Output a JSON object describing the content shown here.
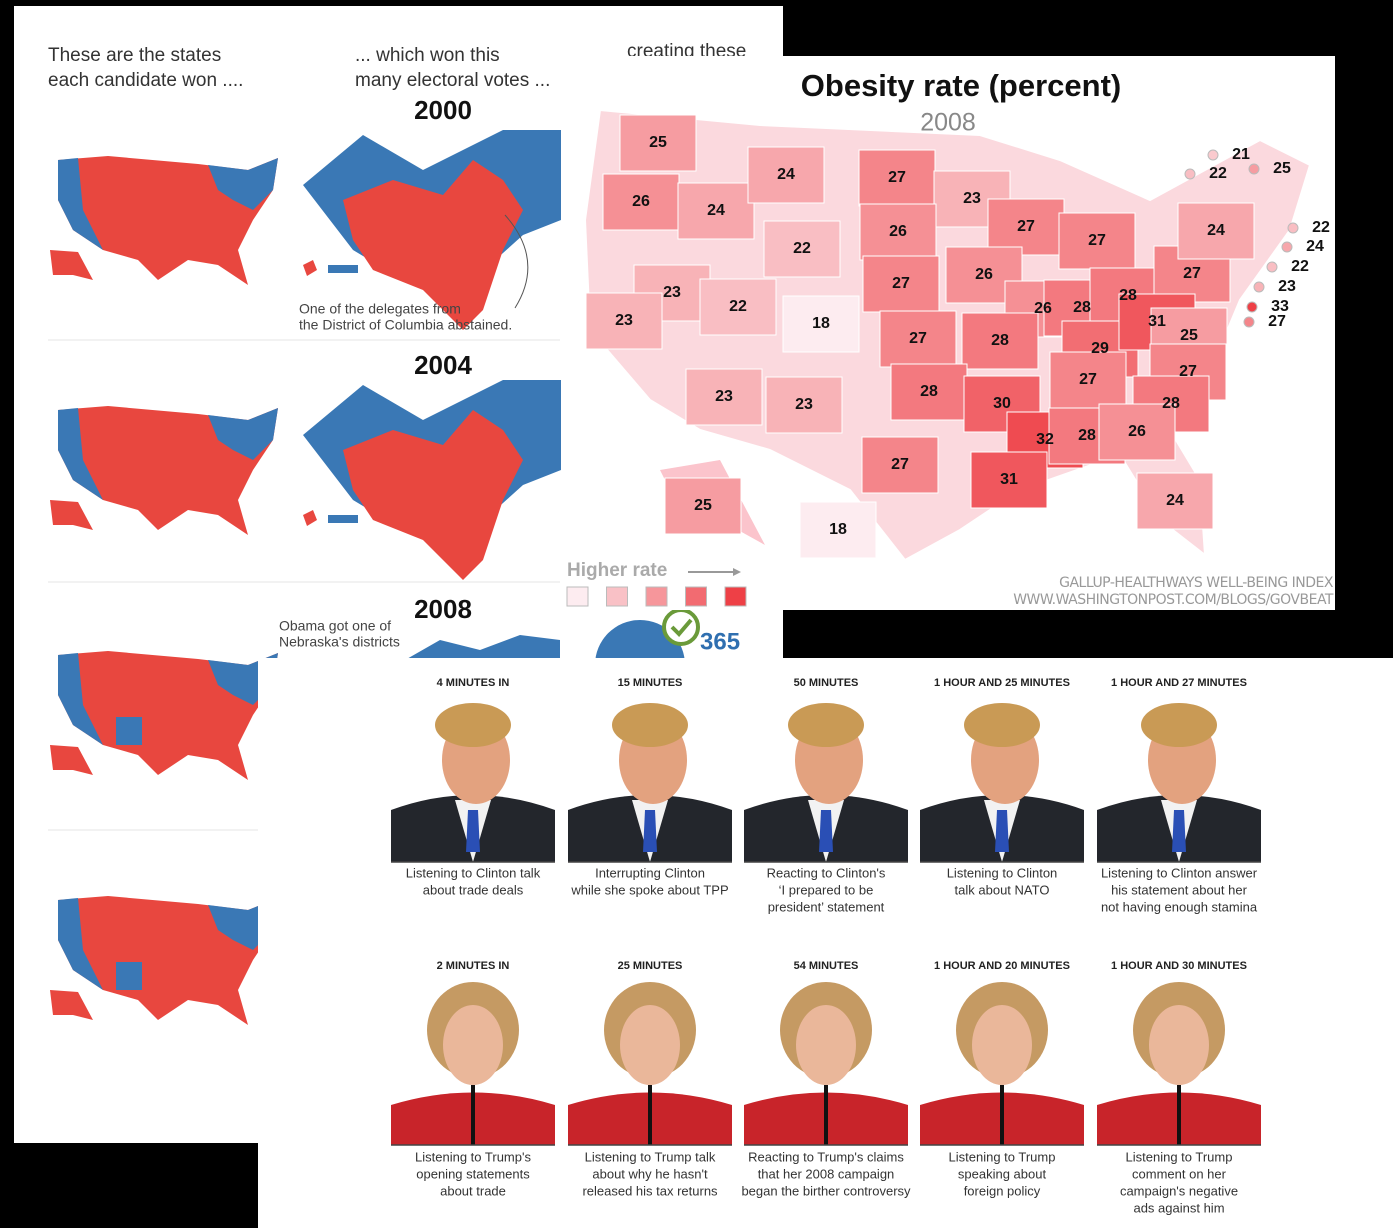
{
  "electoral_panel": {
    "intro_lines": [
      "These are the states",
      "each candidate won ...."
    ],
    "votes_lines": [
      "... which won this",
      "many electoral votes ..."
    ],
    "creating_text": "creating these",
    "years": [
      "2000",
      "2004",
      "2008"
    ],
    "dc_note_lines": [
      "One of the delegates from",
      "the District of Columbia abstained."
    ],
    "nebraska_note_lines": [
      "Obama got one of",
      "Nebraska's districts"
    ],
    "obama_votes": 365
  },
  "obesity_map": {
    "title": "Obesity rate (percent)",
    "subtitle": "2008",
    "values": [
      25,
      26,
      24,
      24,
      27,
      23,
      27,
      27,
      26,
      22,
      23,
      23,
      22,
      18,
      27,
      26,
      26,
      28,
      28,
      27,
      24,
      27,
      28,
      29,
      31,
      25,
      27,
      27,
      28,
      23,
      23,
      28,
      30,
      32,
      28,
      26,
      27,
      31,
      24,
      25,
      18,
      21,
      22,
      25,
      22,
      24,
      22,
      23,
      33,
      27
    ],
    "legend_label": "Higher rate",
    "source_lines": [
      "GALLUP-HEALTHWAYS WELL-BEING INDEX",
      "WWW.WASHINGTONPOST.COM/BLOGS/GOVBEAT"
    ]
  },
  "debate_faces": {
    "rows": [
      {
        "times": [
          "4 MINUTES IN",
          "15 MINUTES",
          "50 MINUTES",
          "1 HOUR AND 25 MINUTES",
          "1 HOUR AND 27 MINUTES"
        ],
        "captions": [
          [
            "Listening to Clinton talk",
            "about trade deals"
          ],
          [
            "Interrupting Clinton",
            "while she spoke about TPP"
          ],
          [
            "Reacting to Clinton's",
            "‘I prepared to be",
            "president’ statement"
          ],
          [
            "Listening to Clinton",
            "talk about NATO"
          ],
          [
            "Listening to Clinton answer",
            "his statement about her",
            "not having enough stamina"
          ]
        ]
      },
      {
        "times": [
          "2 MINUTES IN",
          "25 MINUTES",
          "54 MINUTES",
          "1 HOUR AND 20 MINUTES",
          "1 HOUR AND 30 MINUTES"
        ],
        "captions": [
          [
            "Listening to Trump's",
            "opening statements",
            "about trade"
          ],
          [
            "Listening to Trump talk",
            "about why he hasn't",
            "released his tax returns"
          ],
          [
            "Reacting to Trump's claims",
            "that her 2008 campaign",
            "began the birther controversy"
          ],
          [
            "Listening to Trump",
            "speaking about",
            "foreign policy"
          ],
          [
            "Listening to Trump",
            "comment on her",
            "campaign's negative",
            "ads against him"
          ]
        ]
      }
    ]
  }
}
